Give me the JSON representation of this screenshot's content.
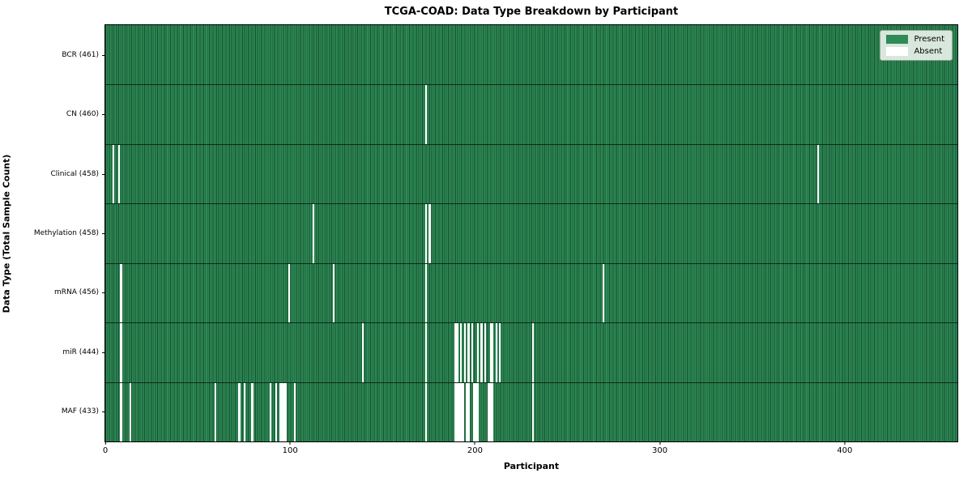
{
  "chart_data": {
    "type": "heatmap",
    "title": "TCGA-COAD: Data Type Breakdown by Participant",
    "xlabel": "Participant",
    "ylabel": "Data Type (Total Sample Count)",
    "xlim": [
      0,
      461
    ],
    "x_ticks": [
      0,
      100,
      200,
      300,
      400
    ],
    "n_participants": 461,
    "grid": false,
    "legend_position": "upper right",
    "legend": {
      "entries": [
        {
          "label": "Present",
          "color": "#2e8b57"
        },
        {
          "label": "Absent",
          "color": "#ffffff"
        }
      ]
    },
    "colors": {
      "present": "#2e8b57",
      "bar_edge": "#174f2e",
      "absent": "#ffffff",
      "legend_bg": "rgba(248,250,246,0.85)"
    },
    "rows": [
      {
        "data_type": "BCR",
        "label": "BCR (461)",
        "total": 461,
        "absent_participants": []
      },
      {
        "data_type": "CN",
        "label": "CN (460)",
        "total": 460,
        "absent_participants": [
          173
        ]
      },
      {
        "data_type": "Clinical",
        "label": "Clinical (458)",
        "total": 458,
        "absent_participants": [
          4,
          7,
          385
        ]
      },
      {
        "data_type": "Methylation",
        "label": "Methylation (458)",
        "total": 458,
        "absent_participants": [
          112,
          173,
          175
        ]
      },
      {
        "data_type": "mRNA",
        "label": "mRNA (456)",
        "total": 456,
        "absent_participants": [
          8,
          99,
          123,
          173,
          269
        ]
      },
      {
        "data_type": "miR",
        "label": "miR (444)",
        "total": 444,
        "absent_participants": [
          8,
          139,
          173,
          189,
          190,
          192,
          194,
          196,
          198,
          201,
          203,
          205,
          208,
          209,
          211,
          213,
          231
        ]
      },
      {
        "data_type": "MAF",
        "label": "MAF (433)",
        "total": 433,
        "absent_participants": [
          8,
          13,
          59,
          72,
          75,
          79,
          89,
          92,
          94,
          95,
          96,
          97,
          102,
          173,
          189,
          190,
          191,
          192,
          193,
          195,
          196,
          199,
          200,
          201,
          207,
          208,
          209,
          231
        ]
      }
    ]
  }
}
